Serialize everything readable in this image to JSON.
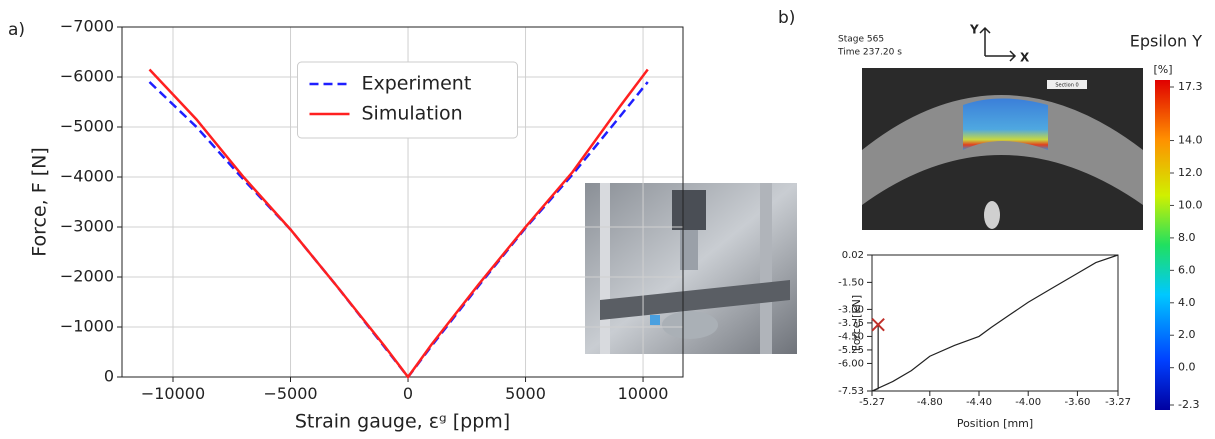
{
  "panel_labels": [
    "a)",
    "b)"
  ],
  "chart_data": [
    {
      "type": "line",
      "xlabel": "Strain gauge, εᵍ [ppm]",
      "ylabel": "Force, F [N]",
      "x": [
        -11000,
        -9000,
        -7000,
        -5000,
        -3000,
        -1000,
        0,
        1000,
        3000,
        5000,
        7000,
        9000,
        10200
      ],
      "series": [
        {
          "name": "Experiment",
          "color": "#1f1fff",
          "linestyle": "dashed",
          "values": [
            -5900,
            -5000,
            -3950,
            -2950,
            -1800,
            -600,
            0,
            -620,
            -1820,
            -2980,
            -4050,
            -5200,
            -5900
          ]
        },
        {
          "name": "Simulation",
          "color": "#ff2020",
          "linestyle": "solid",
          "values": [
            -6150,
            -5150,
            -4000,
            -2950,
            -1800,
            -620,
            0,
            -650,
            -1850,
            -3000,
            -4100,
            -5400,
            -6150
          ]
        }
      ],
      "xlim": [
        -12170,
        11700
      ],
      "xticks": [
        {
          "value": -10000,
          "label": "−10000"
        },
        {
          "value": -5000,
          "label": "−5000"
        },
        0,
        5000,
        10000
      ],
      "ylim": [
        0,
        -7000
      ],
      "yticks": [
        0,
        {
          "value": -1000,
          "label": "−1000"
        },
        {
          "value": -2000,
          "label": "−2000"
        },
        {
          "value": -3000,
          "label": "−3000"
        },
        {
          "value": -4000,
          "label": "−4000"
        },
        {
          "value": -5000,
          "label": "−5000"
        },
        {
          "value": -6000,
          "label": "−6000"
        },
        {
          "value": -7000,
          "label": "−7000"
        }
      ],
      "grid": true,
      "legend": "upper center"
    },
    {
      "type": "line",
      "xlabel": "Position [mm]",
      "ylabel": "Force [kN]",
      "x": [
        -5.22,
        -5.22,
        -5.27,
        -5.1,
        -4.95,
        -4.8,
        -4.6,
        -4.4,
        -4.3,
        -4.15,
        -4.0,
        -3.8,
        -3.6,
        -3.45,
        -3.27
      ],
      "series": [
        {
          "color": "#222222",
          "linestyle": "solid",
          "values": [
            -3.85,
            -7.4,
            -7.53,
            -7.0,
            -6.4,
            -5.6,
            -5.0,
            -4.5,
            -4.0,
            -3.3,
            -2.6,
            -1.8,
            -1.0,
            -0.4,
            0.02
          ]
        }
      ],
      "marker": {
        "x": -5.22,
        "y": -3.85,
        "color": "#c0302a"
      },
      "xlim": [
        -5.27,
        -3.27
      ],
      "xticks": [
        -5.27,
        {
          "value": -4.8,
          "label": "-4.80"
        },
        {
          "value": -4.4,
          "label": "-4.40"
        },
        {
          "value": -4,
          "label": "-4.00"
        },
        {
          "value": -3.6,
          "label": "-3.60"
        },
        -3.27
      ],
      "ylim": [
        -7.53,
        0.02
      ],
      "yticks": [
        0.02,
        {
          "value": -1.5,
          "label": "-1.50"
        },
        {
          "value": -3,
          "label": "-3.00"
        },
        -3.75,
        {
          "value": -4.5,
          "label": "-4.50"
        },
        -5.25,
        {
          "value": -6,
          "label": "-6.00"
        },
        -7.53
      ],
      "grid": false
    }
  ],
  "dic": {
    "stage": "Stage 565",
    "time": "Time  237.20 s",
    "axis_y": "Y",
    "axis_x": "X",
    "section": "Section 0",
    "title": "Epsilon Y",
    "unit": "[%]",
    "colorbar": {
      "lim": [
        -2.3,
        17.3
      ],
      "ticks": [
        17.3,
        {
          "value": 14,
          "label": "14.0"
        },
        {
          "value": 12,
          "label": "12.0"
        },
        {
          "value": 10,
          "label": "10.0"
        },
        {
          "value": 8,
          "label": "8.0"
        },
        {
          "value": 6,
          "label": "6.0"
        },
        {
          "value": 4,
          "label": "4.0"
        },
        {
          "value": 2,
          "label": "2.0"
        },
        {
          "value": 0,
          "label": "0.0"
        },
        -2.3
      ]
    }
  }
}
